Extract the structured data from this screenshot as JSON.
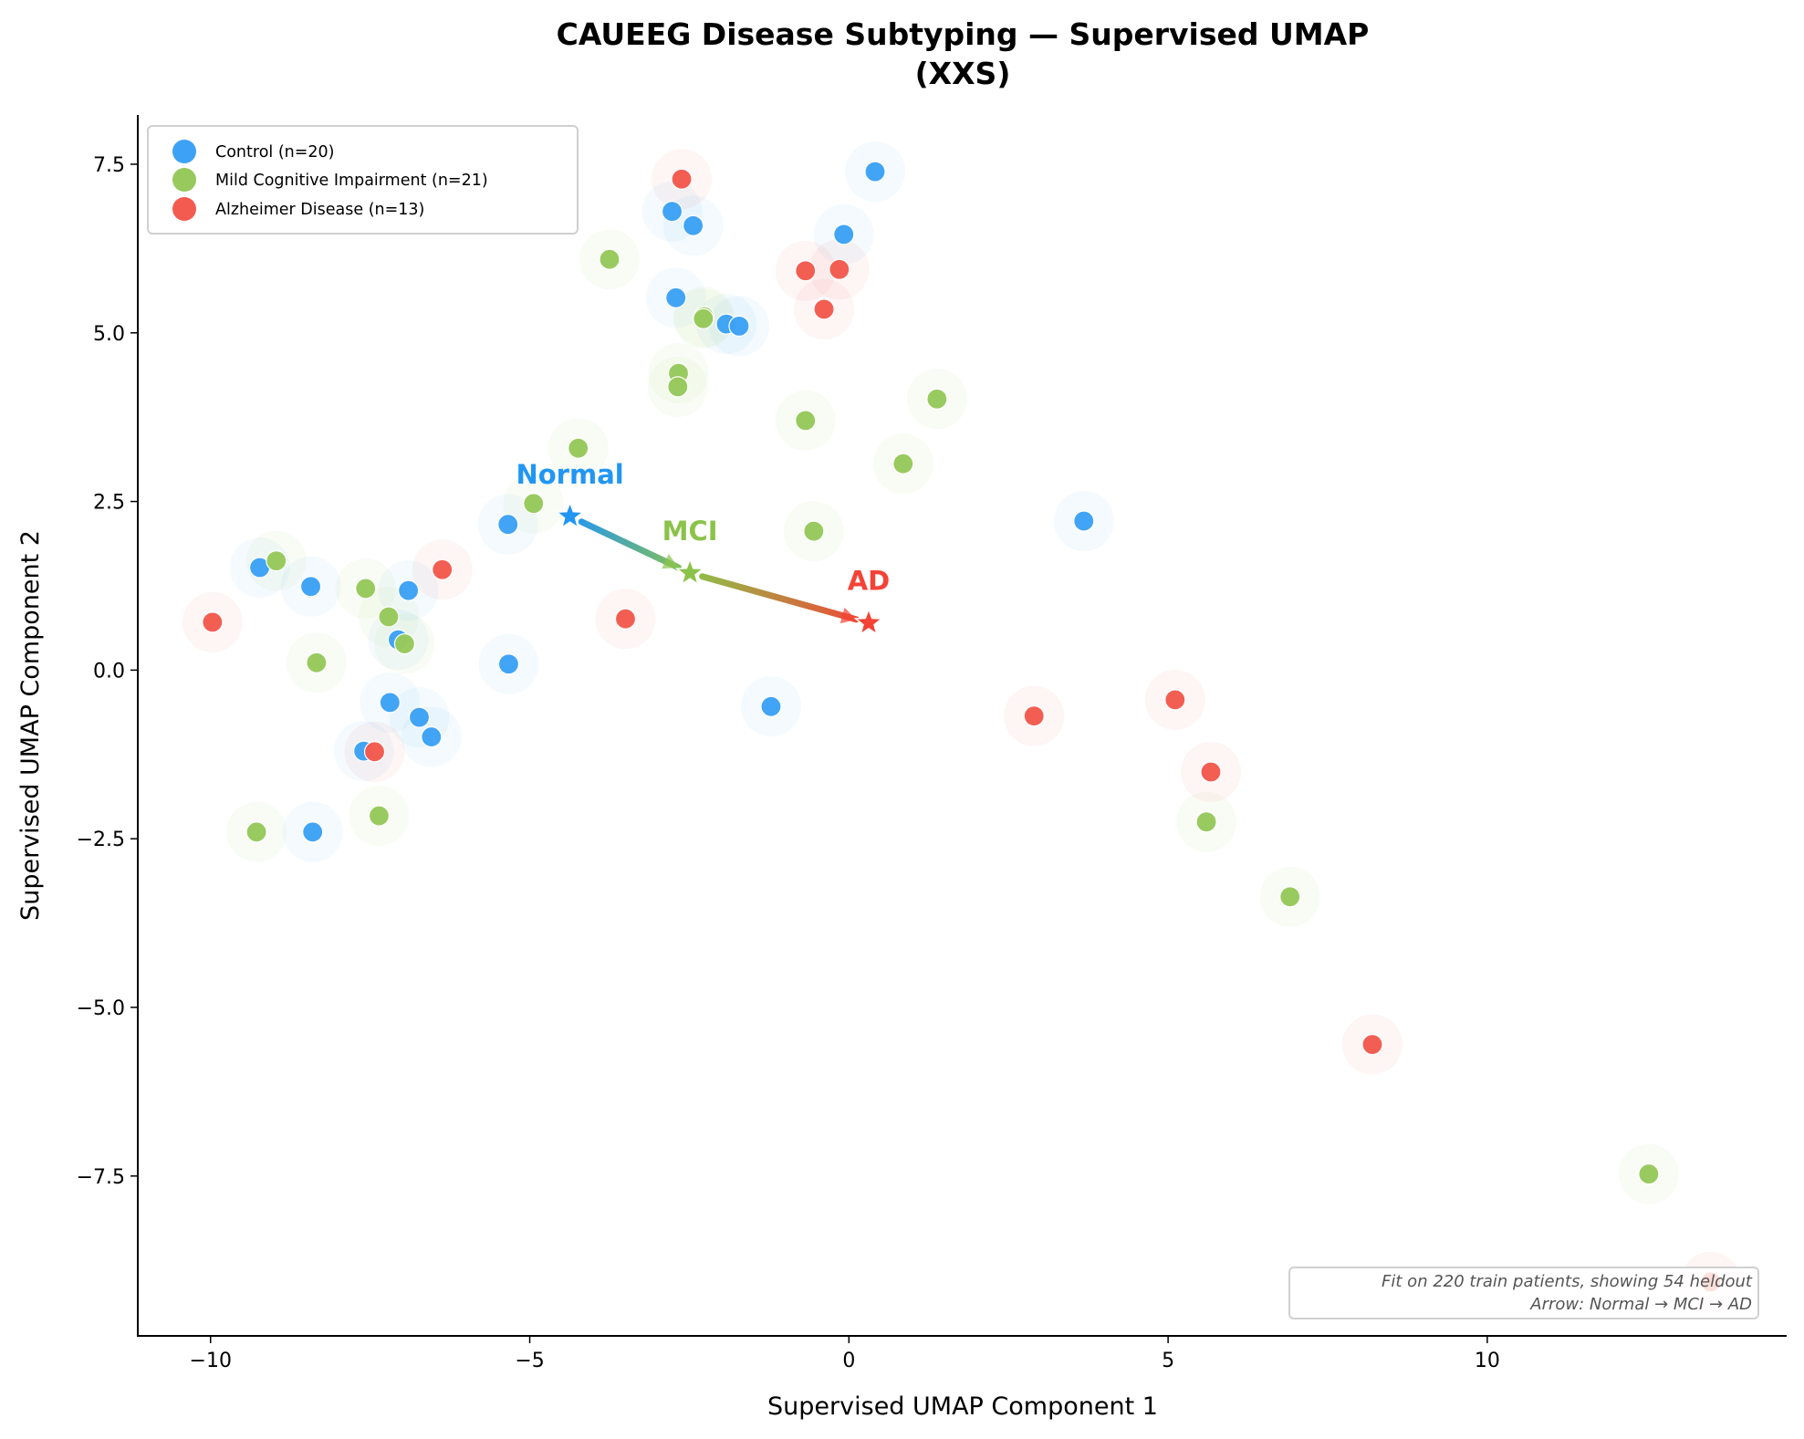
{
  "chart_data": {
    "type": "scatter",
    "title": "CAUEEG Disease Subtyping — Supervised UMAP",
    "subtitle": "(XXS)",
    "xlabel": "Supervised UMAP Component 1",
    "ylabel": "Supervised UMAP Component 2",
    "xlim": [
      -11.14,
      14.69
    ],
    "ylim": [
      -9.87,
      8.23
    ],
    "xticks": [
      -10,
      -5,
      0,
      5,
      10
    ],
    "xtick_labels": [
      "−10",
      "−5",
      "0",
      "5",
      "10"
    ],
    "yticks": [
      7.5,
      5.0,
      2.5,
      0.0,
      -2.5,
      -5.0,
      -7.5
    ],
    "ytick_labels": [
      "7.5",
      "5.0",
      "2.5",
      "0.0",
      "−2.5",
      "−5.0",
      "−7.5"
    ],
    "grid": false,
    "legend_position": "top-left",
    "series": [
      {
        "name": "Control (n=20)",
        "color": "#3da2f5",
        "points": [
          [
            -9.23,
            1.52
          ],
          [
            -8.43,
            1.24
          ],
          [
            -6.9,
            1.18
          ],
          [
            -7.06,
            0.45
          ],
          [
            -5.33,
            0.09
          ],
          [
            -5.34,
            2.16
          ],
          [
            -7.19,
            -0.48
          ],
          [
            -6.73,
            -0.7
          ],
          [
            -6.54,
            -0.99
          ],
          [
            -7.6,
            -1.2
          ],
          [
            -8.4,
            -2.4
          ],
          [
            -2.77,
            6.8
          ],
          [
            -2.44,
            6.59
          ],
          [
            0.41,
            7.39
          ],
          [
            -0.08,
            6.46
          ],
          [
            -2.71,
            5.52
          ],
          [
            -1.92,
            5.13
          ],
          [
            -1.72,
            5.1
          ],
          [
            3.68,
            2.21
          ],
          [
            -1.22,
            -0.54
          ]
        ]
      },
      {
        "name": "Mild Cognitive Impairment (n=21)",
        "color": "#97c95c",
        "points": [
          [
            -8.97,
            1.62
          ],
          [
            -7.57,
            1.21
          ],
          [
            -7.21,
            0.79
          ],
          [
            -6.96,
            0.39
          ],
          [
            -8.34,
            0.11
          ],
          [
            -7.36,
            -2.16
          ],
          [
            -9.28,
            -2.4
          ],
          [
            -3.75,
            6.09
          ],
          [
            -2.27,
            5.24
          ],
          [
            -2.28,
            5.21
          ],
          [
            -2.67,
            4.4
          ],
          [
            -2.68,
            4.2
          ],
          [
            -0.68,
            3.7
          ],
          [
            1.38,
            4.02
          ],
          [
            0.85,
            3.06
          ],
          [
            -4.24,
            3.29
          ],
          [
            -4.94,
            2.47
          ],
          [
            -0.55,
            2.06
          ],
          [
            5.6,
            -2.25
          ],
          [
            6.91,
            -3.36
          ],
          [
            12.53,
            -7.47
          ]
        ]
      },
      {
        "name": "Alzheimer Disease (n=13)",
        "color": "#f35b50",
        "points": [
          [
            -9.97,
            0.71
          ],
          [
            -6.37,
            1.49
          ],
          [
            -7.43,
            -1.21
          ],
          [
            -2.62,
            7.28
          ],
          [
            -0.68,
            5.92
          ],
          [
            -0.15,
            5.94
          ],
          [
            -0.39,
            5.35
          ],
          [
            -3.5,
            0.76
          ],
          [
            2.9,
            -0.68
          ],
          [
            5.11,
            -0.44
          ],
          [
            5.67,
            -1.51
          ],
          [
            8.2,
            -5.55
          ],
          [
            13.5,
            -9.07
          ]
        ]
      }
    ],
    "centroids": [
      {
        "label": "Normal",
        "x": -4.37,
        "y": 2.28,
        "color": "#2196f3"
      },
      {
        "label": "MCI",
        "x": -2.49,
        "y": 1.44,
        "color": "#8bc34a"
      },
      {
        "label": "AD",
        "x": 0.31,
        "y": 0.7,
        "color": "#f44336"
      }
    ],
    "annotation": {
      "line1": "Fit on 220 train patients, showing 54 heldout",
      "line2": "Arrow: Normal → MCI → AD",
      "position": "bottom-right"
    }
  }
}
